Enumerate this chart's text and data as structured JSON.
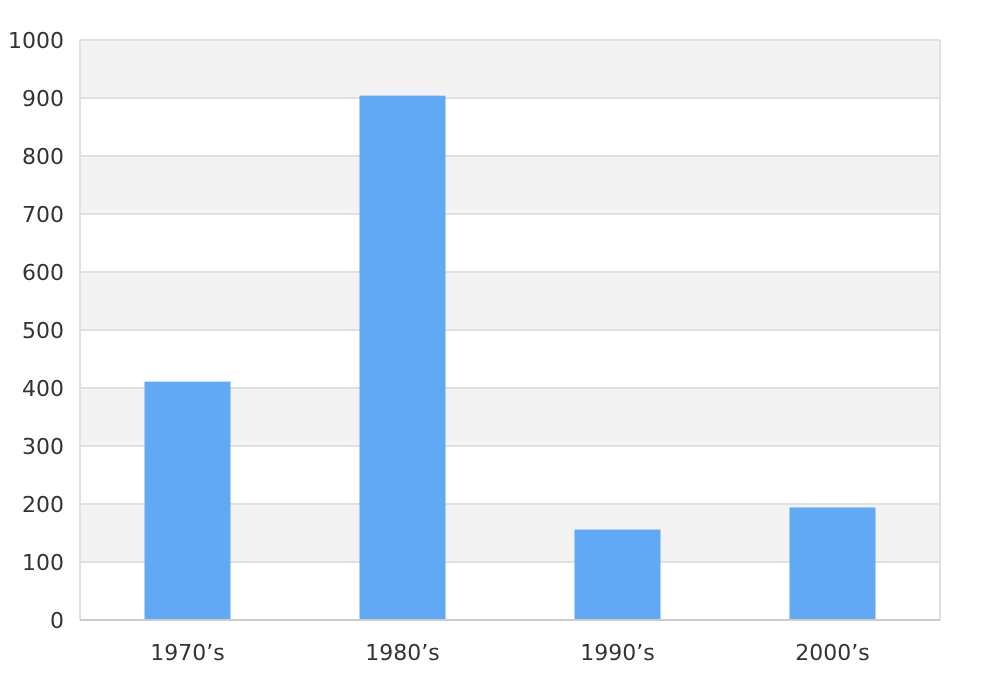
{
  "chart_data": {
    "type": "bar",
    "categories": [
      "1970’s",
      "1980’s",
      "1990’s",
      "2000’s"
    ],
    "values": [
      411,
      904,
      156,
      194
    ],
    "color": "#61a8f5",
    "ylim": [
      0,
      1000
    ],
    "yticks": [
      0,
      100,
      200,
      300,
      400,
      500,
      600,
      700,
      800,
      900,
      1000
    ],
    "grid": "y"
  }
}
